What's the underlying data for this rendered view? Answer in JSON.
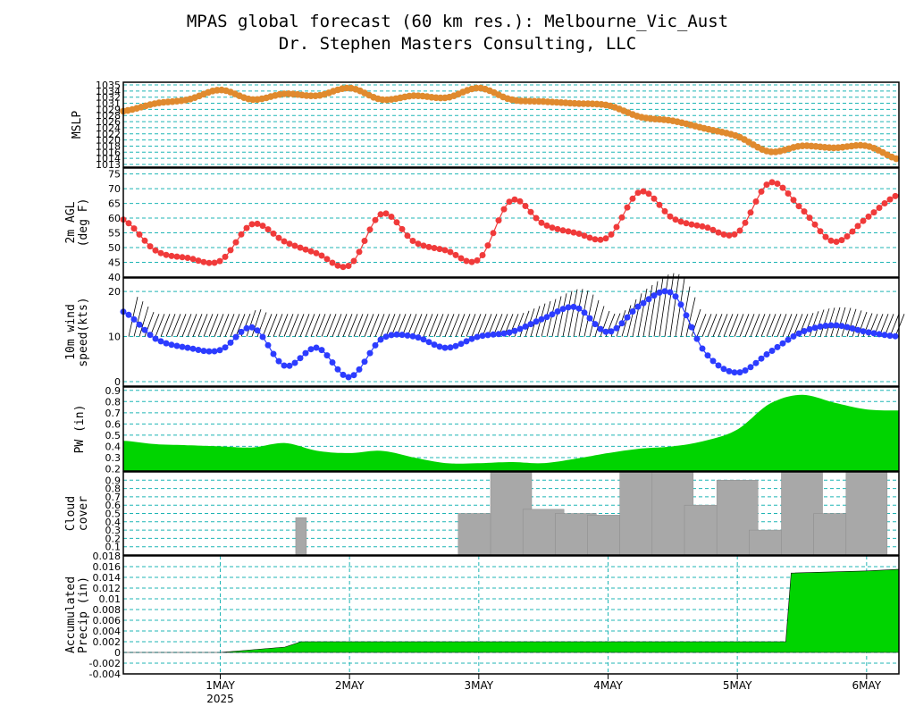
{
  "title_line1": "MPAS global forecast (60 km res.): Melbourne_Vic_Aust",
  "title_line2": "Dr. Stephen Masters Consulting, LLC",
  "colors": {
    "mslp": "#e08a2e",
    "temp": "#f03a3a",
    "wind": "#2c3cff",
    "fill": "#00d400",
    "cloud": "#a8a8a8",
    "grid": "#1fb5b5"
  },
  "x_axis": {
    "day_labels": [
      "1MAY",
      "2MAY",
      "3MAY",
      "4MAY",
      "5MAY",
      "6MAY"
    ],
    "year_label": "2025"
  },
  "chart_data": [
    {
      "type": "line",
      "ylabel": "MSLP",
      "ylim": [
        1013,
        1035
      ],
      "tick_labels": [
        "1035",
        "1034",
        "1032",
        "1031",
        "1029",
        "1028",
        "1026",
        "1024",
        "1022",
        "1020",
        "1018",
        "1016",
        "1014",
        "1013"
      ],
      "series": [
        {
          "x": [
            "2025-04-30 06",
            "2025-04-30 12",
            "2025-04-30 18",
            "2025-05-01 00",
            "2025-05-01 06",
            "2025-05-01 12",
            "2025-05-01 18",
            "2025-05-02 00",
            "2025-05-02 06",
            "2025-05-02 12",
            "2025-05-02 18",
            "2025-05-03 00",
            "2025-05-03 06",
            "2025-05-03 12",
            "2025-05-03 18",
            "2025-05-04 00",
            "2025-05-04 06",
            "2025-05-04 12",
            "2025-05-04 18",
            "2025-05-05 00",
            "2025-05-05 06",
            "2025-05-05 12",
            "2025-05-05 18",
            "2025-05-06 00",
            "2025-05-06 06"
          ],
          "values": [
            1027.5,
            1029.5,
            1030.5,
            1033,
            1030.5,
            1032,
            1031.5,
            1033.5,
            1030.5,
            1031.5,
            1031,
            1033.5,
            1030.5,
            1030,
            1029.5,
            1029,
            1026,
            1025,
            1023,
            1021,
            1017,
            1018.5,
            1018,
            1018.5,
            1015
          ]
        }
      ]
    },
    {
      "type": "line",
      "ylabel": "2m AGL (deg F)",
      "ylim": [
        40,
        77
      ],
      "tick_labels": [
        "75",
        "70",
        "65",
        "60",
        "55",
        "50",
        "45",
        "40"
      ],
      "series": [
        {
          "x": [
            "2025-04-30 06",
            "2025-04-30 12",
            "2025-04-30 18",
            "2025-05-01 00",
            "2025-05-01 06",
            "2025-05-01 12",
            "2025-05-01 18",
            "2025-05-02 00",
            "2025-05-02 06",
            "2025-05-02 12",
            "2025-05-02 18",
            "2025-05-03 00",
            "2025-05-03 06",
            "2025-05-03 12",
            "2025-05-03 18",
            "2025-05-04 00",
            "2025-05-04 06",
            "2025-05-04 12",
            "2025-05-04 18",
            "2025-05-05 00",
            "2025-05-05 06",
            "2025-05-05 12",
            "2025-05-05 18",
            "2025-05-06 00",
            "2025-05-06 06"
          ],
          "values": [
            59.5,
            49,
            46.5,
            45.5,
            58,
            52,
            48,
            44,
            61.5,
            52,
            49,
            46,
            66,
            58,
            55,
            53.5,
            69,
            60,
            57,
            55,
            72,
            63,
            52,
            60,
            68
          ]
        }
      ]
    },
    {
      "type": "line",
      "ylabel": "10m wind speed(kts)",
      "ylim": [
        -1,
        23
      ],
      "tick_labels": [
        "20",
        "10",
        "0"
      ],
      "series": [
        {
          "x": [
            "2025-04-30 06",
            "2025-04-30 12",
            "2025-04-30 18",
            "2025-05-01 00",
            "2025-05-01 06",
            "2025-05-01 12",
            "2025-05-01 18",
            "2025-05-02 00",
            "2025-05-02 06",
            "2025-05-02 12",
            "2025-05-02 18",
            "2025-05-03 00",
            "2025-05-03 06",
            "2025-05-03 12",
            "2025-05-03 18",
            "2025-05-04 00",
            "2025-05-04 06",
            "2025-05-04 12",
            "2025-05-04 18",
            "2025-05-05 00",
            "2025-05-05 06",
            "2025-05-05 12",
            "2025-05-05 18",
            "2025-05-06 00",
            "2025-05-06 06"
          ],
          "values": [
            15.5,
            9.5,
            7.5,
            7,
            12,
            3.5,
            7.5,
            1,
            9.5,
            10,
            7.5,
            10,
            11,
            14,
            16.5,
            11,
            17,
            19.5,
            6.5,
            2,
            6.5,
            11,
            12.5,
            11,
            10
          ]
        }
      ]
    },
    {
      "type": "area",
      "ylabel": "PW (in)",
      "ylim": [
        0.18,
        0.93
      ],
      "tick_labels": [
        "0.9",
        "0.8",
        "0.7",
        "0.6",
        "0.5",
        "0.4",
        "0.3",
        "0.2"
      ],
      "series": [
        {
          "x": [
            "2025-04-30 06",
            "2025-04-30 12",
            "2025-04-30 18",
            "2025-05-01 00",
            "2025-05-01 06",
            "2025-05-01 12",
            "2025-05-01 18",
            "2025-05-02 00",
            "2025-05-02 06",
            "2025-05-02 12",
            "2025-05-02 18",
            "2025-05-03 00",
            "2025-05-03 06",
            "2025-05-03 12",
            "2025-05-03 18",
            "2025-05-04 00",
            "2025-05-04 06",
            "2025-05-04 12",
            "2025-05-04 18",
            "2025-05-05 00",
            "2025-05-05 06",
            "2025-05-05 12",
            "2025-05-05 18",
            "2025-05-06 00",
            "2025-05-06 06"
          ],
          "values": [
            0.45,
            0.42,
            0.41,
            0.4,
            0.39,
            0.43,
            0.36,
            0.34,
            0.36,
            0.3,
            0.25,
            0.25,
            0.26,
            0.25,
            0.29,
            0.34,
            0.38,
            0.4,
            0.45,
            0.55,
            0.78,
            0.86,
            0.79,
            0.73,
            0.72
          ]
        }
      ]
    },
    {
      "type": "bar",
      "ylabel": "Cloud cover",
      "ylim": [
        0,
        1
      ],
      "tick_labels": [
        "0.9",
        "0.8",
        "0.7",
        "0.6",
        "0.5",
        "0.4",
        "0.3",
        "0.2",
        "0.1"
      ],
      "series": [
        {
          "x": [
            "2025-05-01 15",
            "2025-05-03 00",
            "2025-05-03 06",
            "2025-05-03 12",
            "2025-05-03 18",
            "2025-05-04 00",
            "2025-05-04 06",
            "2025-05-04 12",
            "2025-05-04 18",
            "2025-05-05 00",
            "2025-05-05 06",
            "2025-05-05 12",
            "2025-05-05 18",
            "2025-05-06 00"
          ],
          "values": [
            0.45,
            0.5,
            1.0,
            0.55,
            0.5,
            0.48,
            1.0,
            1.0,
            0.6,
            0.9,
            0.3,
            1.0,
            0.5,
            1.0
          ]
        }
      ]
    },
    {
      "type": "area",
      "ylabel": "Accumulated Precip (in)",
      "ylim": [
        -0.004,
        0.018
      ],
      "tick_labels": [
        "0.018",
        "0.016",
        "0.014",
        "0.012",
        "0.01",
        "0.008",
        "0.006",
        "0.004",
        "0.002",
        "0",
        "-0.002",
        "-0.004"
      ],
      "series": [
        {
          "x": [
            "2025-04-30 06",
            "2025-05-01 00",
            "2025-05-01 12",
            "2025-05-01 15",
            "2025-05-02 00",
            "2025-05-03 00",
            "2025-05-04 00",
            "2025-05-05 00",
            "2025-05-05 09",
            "2025-05-05 10",
            "2025-05-06 00",
            "2025-05-06 06"
          ],
          "values": [
            0,
            0,
            0.001,
            0.002,
            0.002,
            0.002,
            0.002,
            0.002,
            0.002,
            0.0148,
            0.0152,
            0.0155
          ]
        }
      ]
    }
  ]
}
